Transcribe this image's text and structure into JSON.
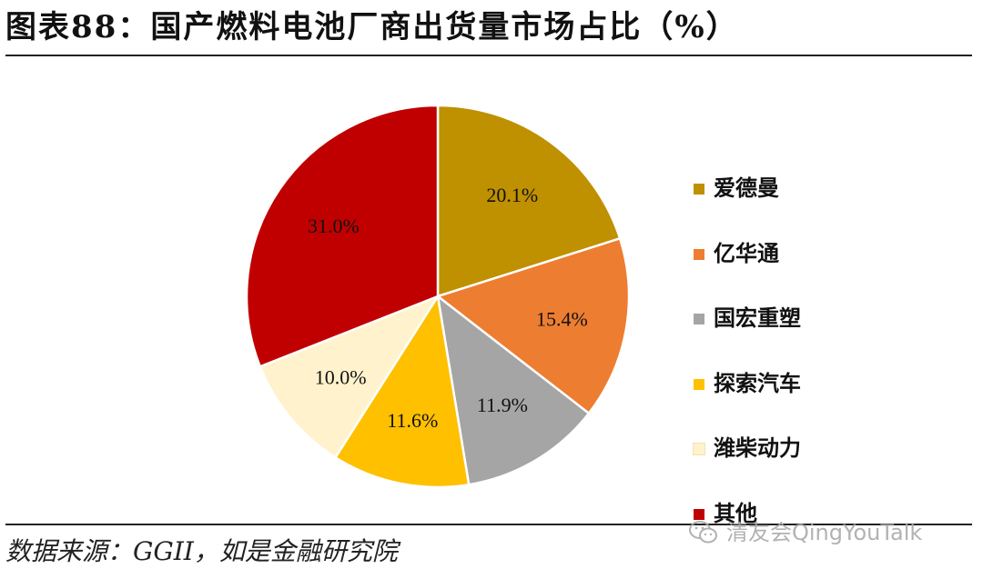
{
  "header": {
    "title": "图表88：国产燃料电池厂商出货量市场占比（%）"
  },
  "chart_data": {
    "type": "pie",
    "title": "图表88：国产燃料电池厂商出货量市场占比（%）",
    "legend_position": "right",
    "slices": [
      {
        "name": "爱德曼",
        "value": 20.1,
        "label": "20.1%",
        "color": "#BF9000"
      },
      {
        "name": "亿华通",
        "value": 15.4,
        "label": "15.4%",
        "color": "#ED7D31"
      },
      {
        "name": "国宏重塑",
        "value": 11.9,
        "label": "11.9%",
        "color": "#A5A5A5"
      },
      {
        "name": "探索汽车",
        "value": 11.6,
        "label": "11.6%",
        "color": "#FFC000"
      },
      {
        "name": "潍柴动力",
        "value": 10.0,
        "label": "10.0%",
        "color": "#FFF2CC"
      },
      {
        "name": "其他",
        "value": 31.0,
        "label": "31.0%",
        "color": "#C00000"
      }
    ]
  },
  "footer": {
    "source": "数据来源：GGII，如是金融研究院",
    "watermark": "清友会QingYouTalk",
    "watermark_icon": "wechat-icon"
  }
}
